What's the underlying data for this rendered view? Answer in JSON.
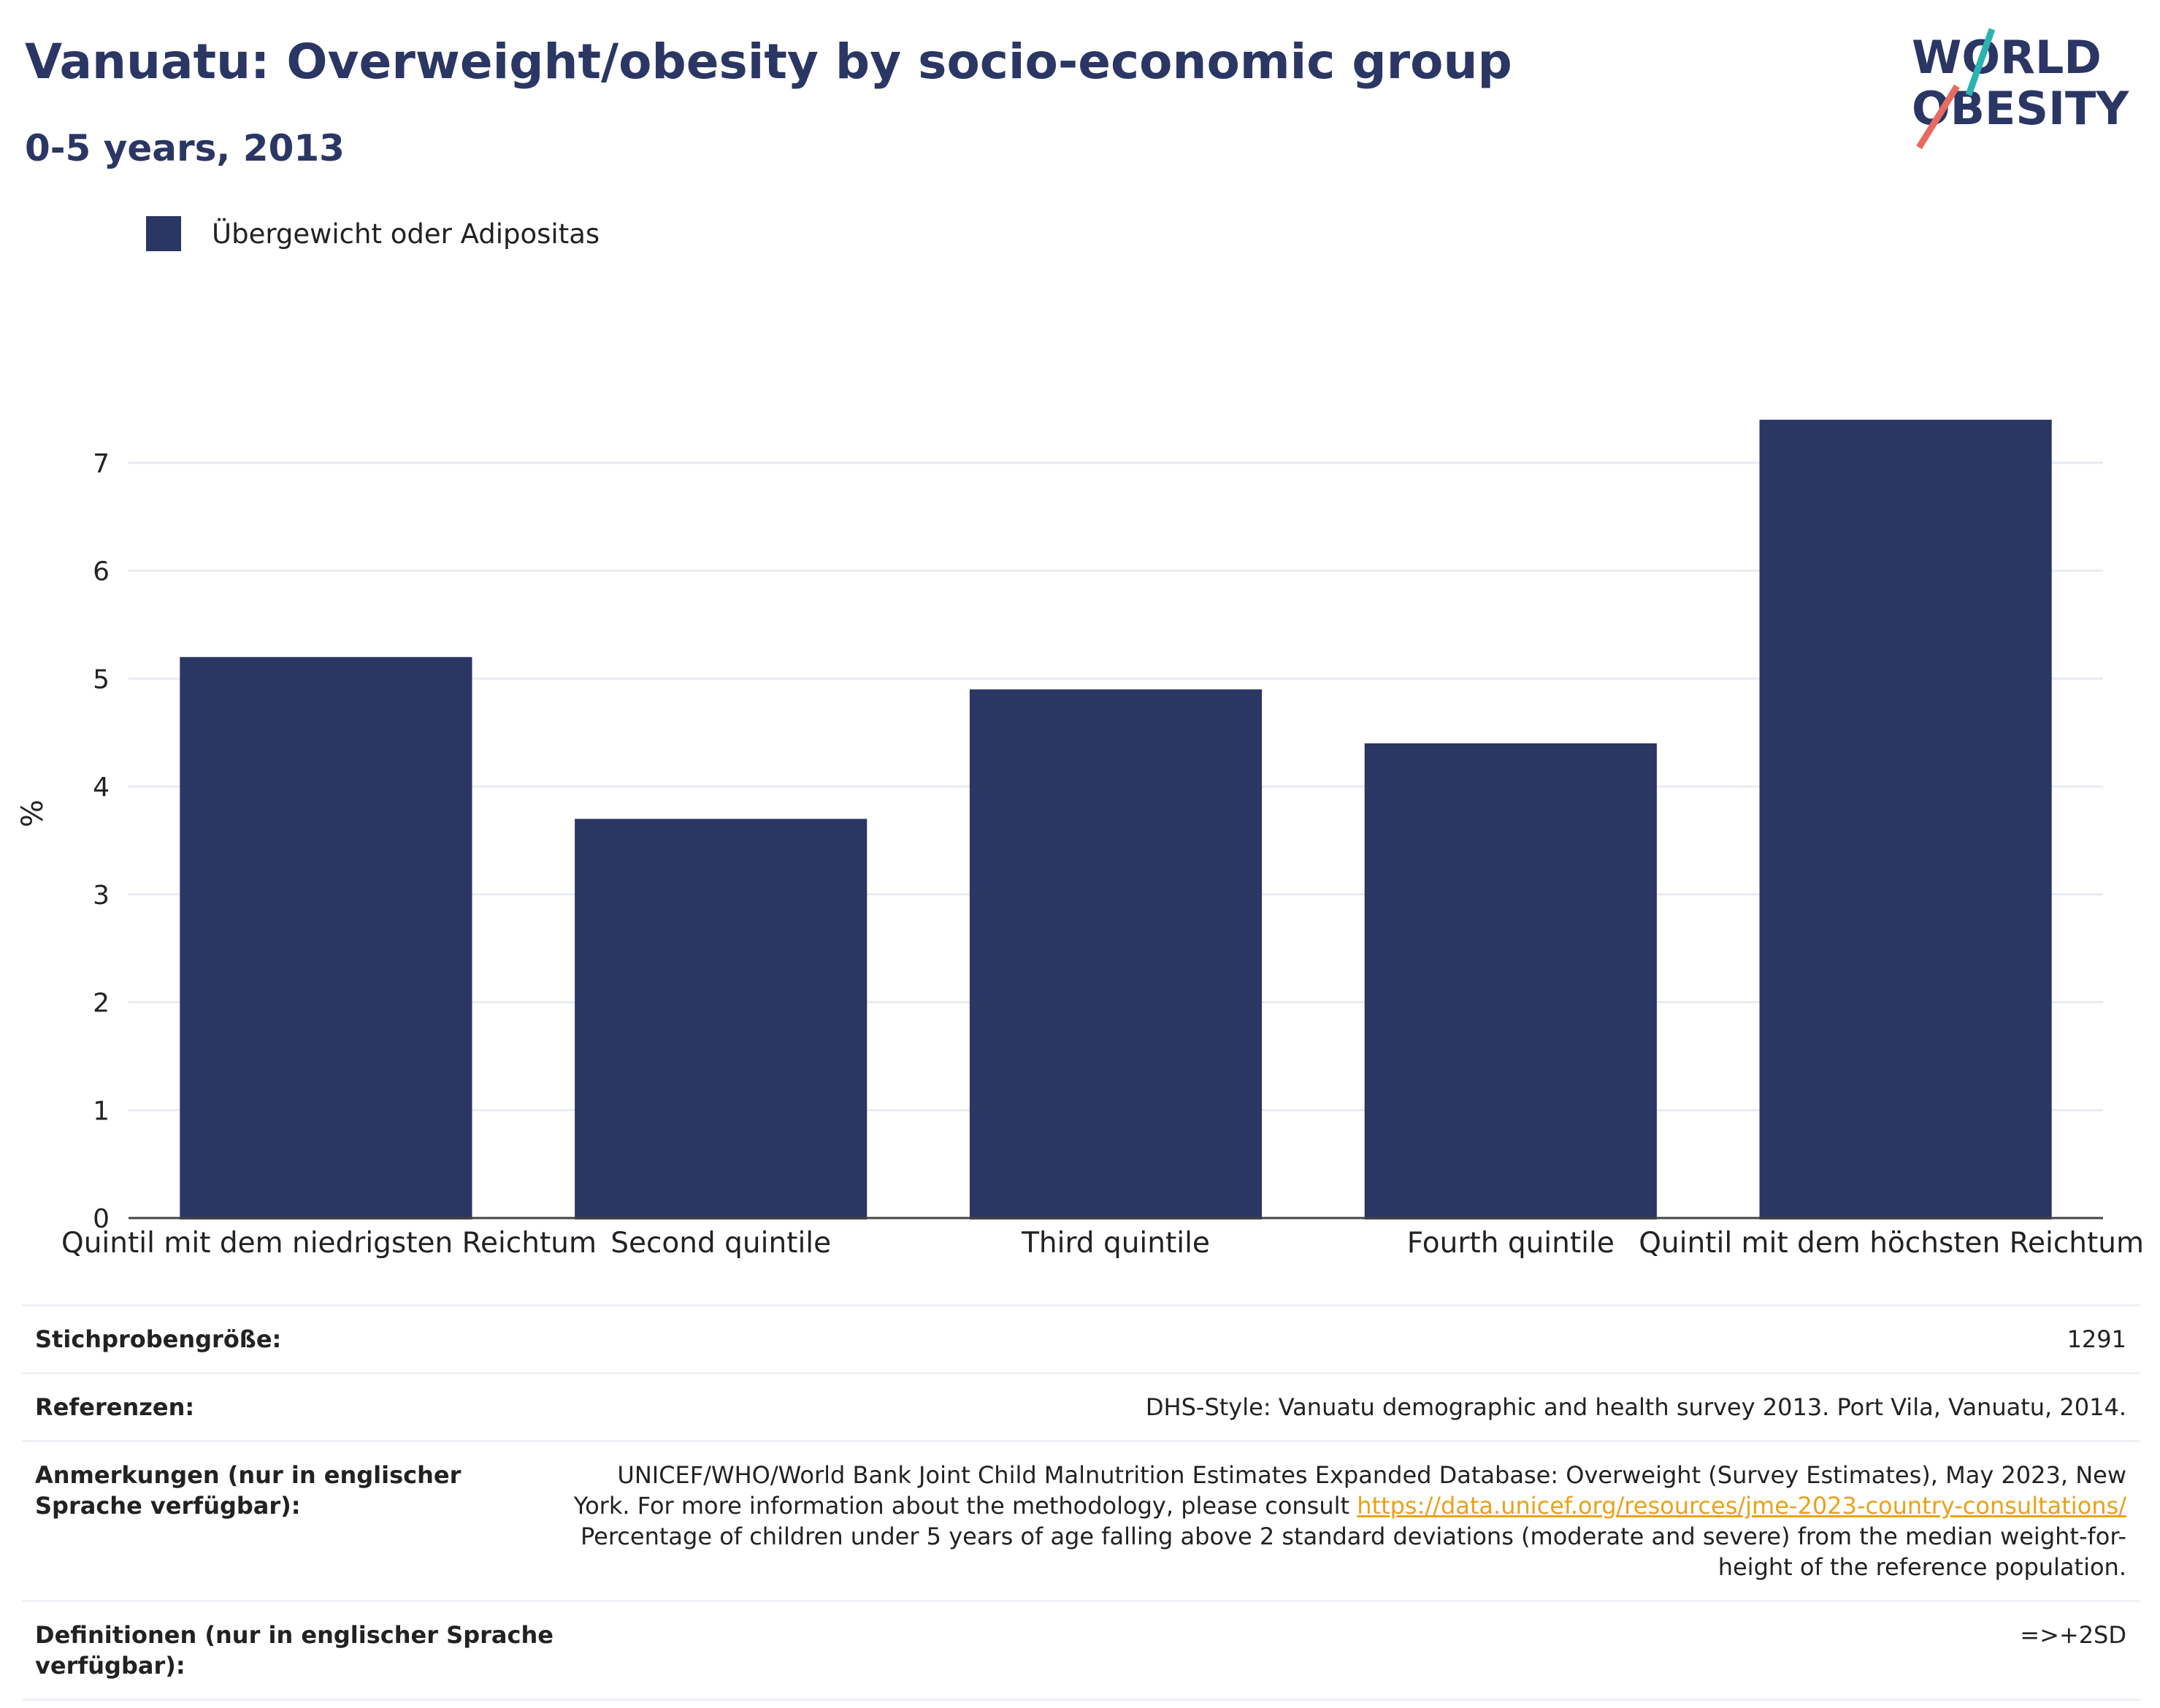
{
  "header": {
    "title": "Vanuatu: Overweight/obesity by socio-economic group",
    "subtitle": "0-5 years, 2013"
  },
  "logo": {
    "line1": "WORLD",
    "line2": "OBESITY",
    "colors": {
      "navy": "#2a3663",
      "teal": "#2ab3b1",
      "coral": "#e86b5f"
    }
  },
  "colors": {
    "bar": "#2a3663",
    "grid": "#e9ebf2",
    "axis": "#444444",
    "link": "#e8a21b"
  },
  "chart_data": {
    "type": "bar",
    "title": "Vanuatu: Overweight/obesity by socio-economic group",
    "subtitle": "0-5 years, 2013",
    "ylabel": "%",
    "xlabel": "",
    "ylim": [
      0,
      7.5
    ],
    "yticks": [
      0,
      1,
      2,
      3,
      4,
      5,
      6,
      7
    ],
    "grid": true,
    "legend_position": "top-left",
    "categories": [
      "Quintil mit dem niedrigsten Reichtum",
      "Second quintile",
      "Third quintile",
      "Fourth quintile",
      "Quintil mit dem höchsten Reichtum"
    ],
    "series": [
      {
        "name": "Übergewicht oder Adipositas",
        "values": [
          5.2,
          3.7,
          4.9,
          4.4,
          7.4
        ]
      }
    ]
  },
  "meta": {
    "sample_label": "Stichprobengröße:",
    "sample_value": "1291",
    "references_label": "Referenzen:",
    "references_value": "DHS-Style: Vanuatu demographic and health survey 2013. Port Vila, Vanuatu, 2014.",
    "notes_label": "Anmerkungen (nur in englischer Sprache verfügbar):",
    "notes_text_1": "UNICEF/WHO/World Bank Joint Child Malnutrition Estimates Expanded Database: Overweight (Survey Estimates), May 2023, New York. For more information about the methodology, please consult ",
    "notes_link": "https://data.unicef.org/resources/jme-2023-country-consultations/",
    "notes_text_2": "Percentage of children under 5 years of age falling above 2 standard deviations (moderate and severe) from the median weight-for-height of the reference population.",
    "definitions_label": "Definitionen (nur in englischer Sprache verfügbar):",
    "definitions_value": "=>+2SD"
  }
}
